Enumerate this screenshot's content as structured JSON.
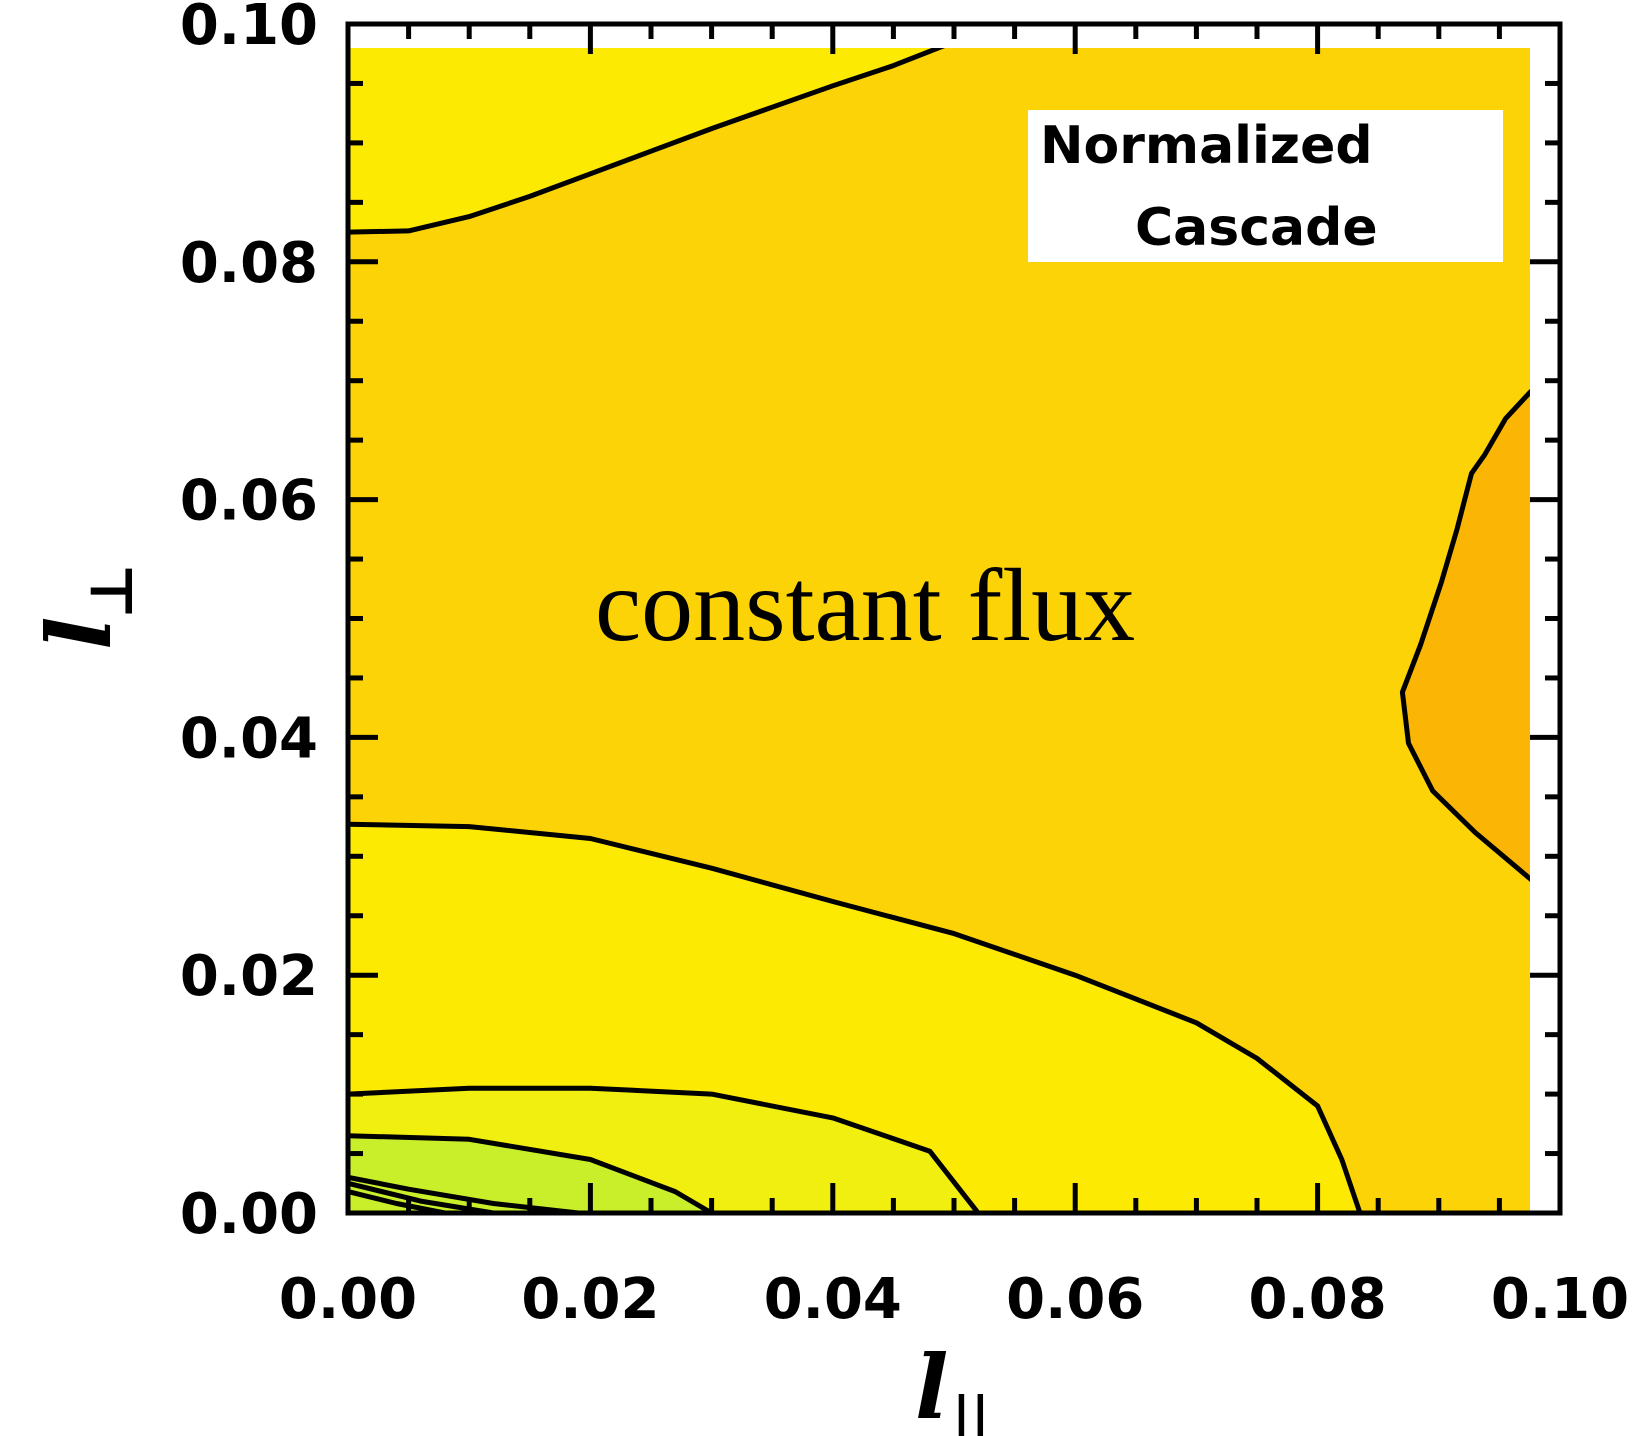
{
  "chart_data": {
    "type": "contour",
    "title": "",
    "xlabel": "l",
    "xlabel_sub": "||",
    "ylabel": "l",
    "ylabel_sub": "⊥",
    "xlim": [
      0.0,
      0.1
    ],
    "ylim": [
      0.0,
      0.1
    ],
    "x_ticks": [
      "0.00",
      "0.02",
      "0.04",
      "0.06",
      "0.08",
      "0.10"
    ],
    "y_ticks": [
      "0.00",
      "0.02",
      "0.04",
      "0.06",
      "0.08",
      "0.10"
    ],
    "legend": {
      "lines": [
        "Normalized",
        "Cascade"
      ],
      "position": "top-right"
    },
    "annotation": "constant flux",
    "grid": false,
    "colors": {
      "background_fill": "#fbd307",
      "band_low": "#fcea02",
      "band_lower": "#f1ef10",
      "band_lowest": "#c8ef2a",
      "band_high": "#fbb505",
      "contour_line": "#000000",
      "axis": "#000000"
    },
    "regions": [
      {
        "name": "top-left-band",
        "fill": "band_low",
        "closed": true,
        "points": [
          [
            0.0,
            0.1
          ],
          [
            0.054,
            0.1
          ],
          [
            0.05,
            0.0985
          ],
          [
            0.045,
            0.0965
          ],
          [
            0.04,
            0.0948
          ],
          [
            0.035,
            0.093
          ],
          [
            0.03,
            0.0912
          ],
          [
            0.025,
            0.0893
          ],
          [
            0.02,
            0.0874
          ],
          [
            0.015,
            0.0855
          ],
          [
            0.01,
            0.0838
          ],
          [
            0.005,
            0.0826
          ],
          [
            0.0,
            0.0825
          ]
        ]
      },
      {
        "name": "right-high-band",
        "fill": "band_high",
        "closed": true,
        "points": [
          [
            0.1,
            0.0712
          ],
          [
            0.0975,
            0.069
          ],
          [
            0.0955,
            0.0668
          ],
          [
            0.0938,
            0.0638
          ],
          [
            0.0927,
            0.0622
          ],
          [
            0.0915,
            0.0575
          ],
          [
            0.0902,
            0.053
          ],
          [
            0.0885,
            0.0478
          ],
          [
            0.087,
            0.0438
          ],
          [
            0.0875,
            0.0395
          ],
          [
            0.0895,
            0.0355
          ],
          [
            0.093,
            0.032
          ],
          [
            0.0965,
            0.029
          ],
          [
            0.1,
            0.026
          ]
        ]
      },
      {
        "name": "bottom-low-band",
        "fill": "band_low",
        "closed": true,
        "points": [
          [
            0.0,
            0.0327
          ],
          [
            0.01,
            0.0325
          ],
          [
            0.02,
            0.0315
          ],
          [
            0.03,
            0.029
          ],
          [
            0.04,
            0.0262
          ],
          [
            0.05,
            0.0235
          ],
          [
            0.06,
            0.02
          ],
          [
            0.07,
            0.016
          ],
          [
            0.075,
            0.013
          ],
          [
            0.08,
            0.009
          ],
          [
            0.082,
            0.0045
          ],
          [
            0.0835,
            0.0
          ]
        ]
      },
      {
        "name": "lower-band",
        "fill": "band_lower",
        "closed": true,
        "points": [
          [
            0.0,
            0.01
          ],
          [
            0.01,
            0.0105
          ],
          [
            0.02,
            0.0105
          ],
          [
            0.03,
            0.01
          ],
          [
            0.04,
            0.008
          ],
          [
            0.048,
            0.0052
          ],
          [
            0.052,
            0.0
          ]
        ]
      },
      {
        "name": "lowest-band",
        "fill": "band_lowest",
        "closed": true,
        "points": [
          [
            0.0,
            0.0065
          ],
          [
            0.01,
            0.0062
          ],
          [
            0.02,
            0.0045
          ],
          [
            0.027,
            0.0018
          ],
          [
            0.03,
            0.0
          ]
        ]
      }
    ],
    "contours": [
      {
        "name": "contour-1",
        "points": [
          [
            0.0,
            0.0825
          ],
          [
            0.005,
            0.0826
          ],
          [
            0.01,
            0.0838
          ],
          [
            0.015,
            0.0855
          ],
          [
            0.02,
            0.0874
          ],
          [
            0.025,
            0.0893
          ],
          [
            0.03,
            0.0912
          ],
          [
            0.035,
            0.093
          ],
          [
            0.04,
            0.0948
          ],
          [
            0.045,
            0.0965
          ],
          [
            0.05,
            0.0985
          ],
          [
            0.054,
            0.1
          ]
        ]
      },
      {
        "name": "contour-2",
        "points": [
          [
            0.1,
            0.0712
          ],
          [
            0.0975,
            0.069
          ],
          [
            0.0955,
            0.0668
          ],
          [
            0.0938,
            0.0638
          ],
          [
            0.0927,
            0.0622
          ],
          [
            0.0915,
            0.0575
          ],
          [
            0.0902,
            0.053
          ],
          [
            0.0885,
            0.0478
          ],
          [
            0.087,
            0.0438
          ],
          [
            0.0875,
            0.0395
          ],
          [
            0.0895,
            0.0355
          ],
          [
            0.093,
            0.032
          ],
          [
            0.0965,
            0.029
          ],
          [
            0.1,
            0.026
          ]
        ]
      },
      {
        "name": "contour-3",
        "points": [
          [
            0.0,
            0.0327
          ],
          [
            0.01,
            0.0325
          ],
          [
            0.02,
            0.0315
          ],
          [
            0.03,
            0.029
          ],
          [
            0.04,
            0.0262
          ],
          [
            0.05,
            0.0235
          ],
          [
            0.06,
            0.02
          ],
          [
            0.07,
            0.016
          ],
          [
            0.075,
            0.013
          ],
          [
            0.08,
            0.009
          ],
          [
            0.082,
            0.0045
          ],
          [
            0.0835,
            0.0
          ]
        ]
      },
      {
        "name": "contour-4",
        "points": [
          [
            0.0,
            0.01
          ],
          [
            0.01,
            0.0105
          ],
          [
            0.02,
            0.0105
          ],
          [
            0.03,
            0.01
          ],
          [
            0.04,
            0.008
          ],
          [
            0.048,
            0.0052
          ],
          [
            0.052,
            0.0
          ]
        ]
      },
      {
        "name": "contour-5",
        "points": [
          [
            0.0,
            0.0065
          ],
          [
            0.01,
            0.0062
          ],
          [
            0.02,
            0.0045
          ],
          [
            0.027,
            0.0018
          ],
          [
            0.03,
            0.0
          ]
        ]
      },
      {
        "name": "contour-6",
        "points": [
          [
            0.0,
            0.003
          ],
          [
            0.005,
            0.002
          ],
          [
            0.012,
            0.0008
          ],
          [
            0.019,
            0.0
          ]
        ]
      },
      {
        "name": "contour-7",
        "points": [
          [
            0.0,
            0.0025
          ],
          [
            0.006,
            0.001
          ],
          [
            0.012,
            0.0
          ]
        ]
      },
      {
        "name": "contour-8",
        "points": [
          [
            0.0,
            0.0018
          ],
          [
            0.004,
            0.0008
          ],
          [
            0.008,
            0.0
          ]
        ]
      }
    ]
  }
}
